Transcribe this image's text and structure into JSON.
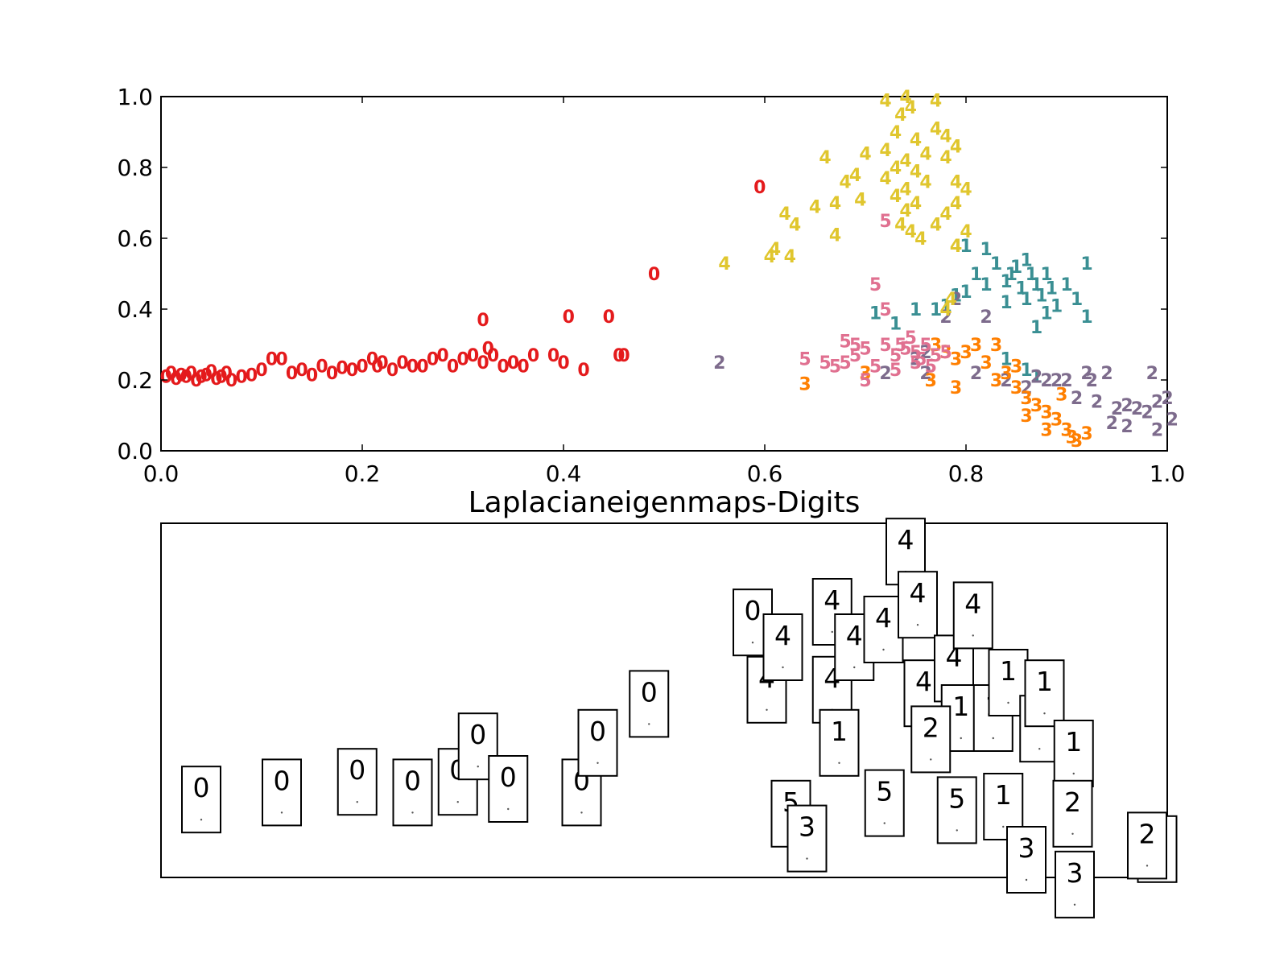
{
  "chart_data": [
    {
      "type": "scatter",
      "title": "",
      "xlabel": "",
      "ylabel": "",
      "xlim": [
        0.0,
        1.0
      ],
      "ylim": [
        0.0,
        1.0
      ],
      "xticks": [
        "0.0",
        "0.2",
        "0.4",
        "0.6",
        "0.8",
        "1.0"
      ],
      "yticks": [
        "0.0",
        "0.2",
        "0.4",
        "0.6",
        "0.8",
        "1.0"
      ],
      "grid": false,
      "colors": {
        "0": "#e41a1c",
        "1": "#3a8f93",
        "2": "#7d6b8c",
        "3": "#ff7f00",
        "4": "#e0c62e",
        "5": "#e07090"
      },
      "series": [
        {
          "label": "0",
          "points": [
            [
              0.005,
              0.21
            ],
            [
              0.01,
              0.22
            ],
            [
              0.015,
              0.205
            ],
            [
              0.02,
              0.215
            ],
            [
              0.025,
              0.21
            ],
            [
              0.03,
              0.22
            ],
            [
              0.035,
              0.2
            ],
            [
              0.04,
              0.21
            ],
            [
              0.045,
              0.215
            ],
            [
              0.05,
              0.225
            ],
            [
              0.055,
              0.205
            ],
            [
              0.06,
              0.21
            ],
            [
              0.065,
              0.22
            ],
            [
              0.07,
              0.2
            ],
            [
              0.08,
              0.21
            ],
            [
              0.09,
              0.215
            ],
            [
              0.1,
              0.23
            ],
            [
              0.11,
              0.26
            ],
            [
              0.12,
              0.26
            ],
            [
              0.13,
              0.22
            ],
            [
              0.14,
              0.23
            ],
            [
              0.15,
              0.215
            ],
            [
              0.16,
              0.24
            ],
            [
              0.17,
              0.22
            ],
            [
              0.18,
              0.235
            ],
            [
              0.19,
              0.23
            ],
            [
              0.2,
              0.24
            ],
            [
              0.21,
              0.26
            ],
            [
              0.215,
              0.24
            ],
            [
              0.22,
              0.25
            ],
            [
              0.23,
              0.23
            ],
            [
              0.24,
              0.25
            ],
            [
              0.25,
              0.24
            ],
            [
              0.26,
              0.24
            ],
            [
              0.27,
              0.26
            ],
            [
              0.28,
              0.27
            ],
            [
              0.29,
              0.24
            ],
            [
              0.3,
              0.26
            ],
            [
              0.31,
              0.27
            ],
            [
              0.32,
              0.25
            ],
            [
              0.325,
              0.29
            ],
            [
              0.33,
              0.27
            ],
            [
              0.34,
              0.24
            ],
            [
              0.35,
              0.25
            ],
            [
              0.36,
              0.24
            ],
            [
              0.37,
              0.27
            ],
            [
              0.39,
              0.27
            ],
            [
              0.4,
              0.25
            ],
            [
              0.42,
              0.23
            ],
            [
              0.455,
              0.27
            ],
            [
              0.46,
              0.27
            ],
            [
              0.405,
              0.38
            ],
            [
              0.445,
              0.38
            ],
            [
              0.32,
              0.37
            ],
            [
              0.49,
              0.5
            ],
            [
              0.595,
              0.745
            ]
          ]
        },
        {
          "label": "1",
          "points": [
            [
              0.77,
              0.4
            ],
            [
              0.71,
              0.39
            ],
            [
              0.73,
              0.36
            ],
            [
              0.75,
              0.4
            ],
            [
              0.78,
              0.41
            ],
            [
              0.79,
              0.44
            ],
            [
              0.8,
              0.45
            ],
            [
              0.81,
              0.5
            ],
            [
              0.82,
              0.47
            ],
            [
              0.83,
              0.53
            ],
            [
              0.84,
              0.48
            ],
            [
              0.845,
              0.5
            ],
            [
              0.85,
              0.52
            ],
            [
              0.855,
              0.46
            ],
            [
              0.86,
              0.43
            ],
            [
              0.865,
              0.5
            ],
            [
              0.87,
              0.47
            ],
            [
              0.875,
              0.44
            ],
            [
              0.88,
              0.5
            ],
            [
              0.885,
              0.46
            ],
            [
              0.89,
              0.41
            ],
            [
              0.9,
              0.47
            ],
            [
              0.91,
              0.43
            ],
            [
              0.92,
              0.38
            ],
            [
              0.92,
              0.53
            ],
            [
              0.87,
              0.35
            ],
            [
              0.84,
              0.42
            ],
            [
              0.8,
              0.58
            ],
            [
              0.82,
              0.57
            ],
            [
              0.86,
              0.54
            ],
            [
              0.88,
              0.39
            ],
            [
              0.84,
              0.26
            ],
            [
              0.87,
              0.21
            ],
            [
              0.86,
              0.23
            ]
          ]
        },
        {
          "label": "2",
          "points": [
            [
              0.555,
              0.25
            ],
            [
              0.72,
              0.22
            ],
            [
              0.76,
              0.22
            ],
            [
              0.78,
              0.38
            ],
            [
              0.79,
              0.43
            ],
            [
              0.81,
              0.22
            ],
            [
              0.82,
              0.38
            ],
            [
              0.84,
              0.2
            ],
            [
              0.86,
              0.18
            ],
            [
              0.87,
              0.21
            ],
            [
              0.88,
              0.2
            ],
            [
              0.89,
              0.2
            ],
            [
              0.9,
              0.2
            ],
            [
              0.91,
              0.15
            ],
            [
              0.92,
              0.22
            ],
            [
              0.93,
              0.14
            ],
            [
              0.94,
              0.22
            ],
            [
              0.95,
              0.12
            ],
            [
              0.96,
              0.13
            ],
            [
              0.97,
              0.12
            ],
            [
              0.98,
              0.11
            ],
            [
              0.985,
              0.22
            ],
            [
              0.99,
              0.14
            ],
            [
              1.0,
              0.15
            ],
            [
              1.005,
              0.09
            ],
            [
              0.99,
              0.06
            ],
            [
              0.96,
              0.07
            ],
            [
              0.945,
              0.08
            ],
            [
              0.925,
              0.2
            ],
            [
              0.75,
              0.26
            ],
            [
              0.76,
              0.28
            ]
          ]
        },
        {
          "label": "3",
          "points": [
            [
              0.64,
              0.19
            ],
            [
              0.7,
              0.22
            ],
            [
              0.77,
              0.3
            ],
            [
              0.78,
              0.28
            ],
            [
              0.79,
              0.26
            ],
            [
              0.8,
              0.28
            ],
            [
              0.81,
              0.3
            ],
            [
              0.82,
              0.25
            ],
            [
              0.83,
              0.3
            ],
            [
              0.84,
              0.22
            ],
            [
              0.85,
              0.18
            ],
            [
              0.86,
              0.15
            ],
            [
              0.87,
              0.13
            ],
            [
              0.88,
              0.11
            ],
            [
              0.89,
              0.09
            ],
            [
              0.9,
              0.06
            ],
            [
              0.905,
              0.04
            ],
            [
              0.91,
              0.03
            ],
            [
              0.92,
              0.05
            ],
            [
              0.895,
              0.16
            ],
            [
              0.83,
              0.2
            ],
            [
              0.79,
              0.18
            ],
            [
              0.765,
              0.2
            ],
            [
              0.85,
              0.24
            ],
            [
              0.86,
              0.1
            ],
            [
              0.88,
              0.06
            ]
          ]
        },
        {
          "label": "4",
          "points": [
            [
              0.74,
              1.0
            ],
            [
              0.745,
              0.97
            ],
            [
              0.735,
              0.95
            ],
            [
              0.73,
              0.9
            ],
            [
              0.75,
              0.88
            ],
            [
              0.72,
              0.85
            ],
            [
              0.76,
              0.84
            ],
            [
              0.74,
              0.82
            ],
            [
              0.73,
              0.8
            ],
            [
              0.75,
              0.79
            ],
            [
              0.72,
              0.77
            ],
            [
              0.76,
              0.76
            ],
            [
              0.74,
              0.74
            ],
            [
              0.73,
              0.72
            ],
            [
              0.75,
              0.7
            ],
            [
              0.74,
              0.68
            ],
            [
              0.735,
              0.64
            ],
            [
              0.745,
              0.62
            ],
            [
              0.755,
              0.6
            ],
            [
              0.77,
              0.64
            ],
            [
              0.78,
              0.67
            ],
            [
              0.79,
              0.7
            ],
            [
              0.8,
              0.74
            ],
            [
              0.79,
              0.76
            ],
            [
              0.78,
              0.83
            ],
            [
              0.79,
              0.86
            ],
            [
              0.78,
              0.89
            ],
            [
              0.77,
              0.91
            ],
            [
              0.7,
              0.84
            ],
            [
              0.69,
              0.78
            ],
            [
              0.68,
              0.76
            ],
            [
              0.66,
              0.83
            ],
            [
              0.695,
              0.71
            ],
            [
              0.67,
              0.7
            ],
            [
              0.65,
              0.69
            ],
            [
              0.62,
              0.67
            ],
            [
              0.63,
              0.64
            ],
            [
              0.61,
              0.57
            ],
            [
              0.625,
              0.55
            ],
            [
              0.56,
              0.53
            ],
            [
              0.605,
              0.55
            ],
            [
              0.67,
              0.61
            ],
            [
              0.72,
              0.99
            ],
            [
              0.77,
              0.99
            ],
            [
              0.79,
              0.58
            ],
            [
              0.8,
              0.62
            ],
            [
              0.79,
              0.58
            ],
            [
              0.78,
              0.4
            ],
            [
              0.785,
              0.43
            ]
          ]
        },
        {
          "label": "5",
          "points": [
            [
              0.64,
              0.26
            ],
            [
              0.66,
              0.25
            ],
            [
              0.67,
              0.24
            ],
            [
              0.68,
              0.25
            ],
            [
              0.69,
              0.27
            ],
            [
              0.7,
              0.29
            ],
            [
              0.71,
              0.24
            ],
            [
              0.72,
              0.3
            ],
            [
              0.73,
              0.27
            ],
            [
              0.74,
              0.29
            ],
            [
              0.75,
              0.28
            ],
            [
              0.755,
              0.26
            ],
            [
              0.76,
              0.3
            ],
            [
              0.77,
              0.27
            ],
            [
              0.78,
              0.28
            ],
            [
              0.745,
              0.32
            ],
            [
              0.735,
              0.3
            ],
            [
              0.7,
              0.2
            ],
            [
              0.71,
              0.47
            ],
            [
              0.72,
              0.4
            ],
            [
              0.75,
              0.25
            ],
            [
              0.765,
              0.24
            ],
            [
              0.73,
              0.23
            ],
            [
              0.69,
              0.3
            ],
            [
              0.68,
              0.31
            ],
            [
              0.72,
              0.65
            ]
          ]
        }
      ]
    },
    {
      "type": "scatter",
      "title": "Laplacianeigenmaps-Digits",
      "xlabel": "",
      "ylabel": "",
      "xlim": [
        0.0,
        1.0
      ],
      "ylim": [
        0.0,
        1.0
      ],
      "axis_ticks": false,
      "note_cards": [
        {
          "digit": "0",
          "x": 0.04,
          "y": 0.22
        },
        {
          "digit": "0",
          "x": 0.12,
          "y": 0.24
        },
        {
          "digit": "0",
          "x": 0.195,
          "y": 0.27
        },
        {
          "digit": "0",
          "x": 0.25,
          "y": 0.24
        },
        {
          "digit": "0",
          "x": 0.295,
          "y": 0.27
        },
        {
          "digit": "0",
          "x": 0.315,
          "y": 0.37
        },
        {
          "digit": "0",
          "x": 0.345,
          "y": 0.25
        },
        {
          "digit": "0",
          "x": 0.418,
          "y": 0.24
        },
        {
          "digit": "0",
          "x": 0.434,
          "y": 0.38
        },
        {
          "digit": "0",
          "x": 0.485,
          "y": 0.49
        },
        {
          "digit": "0",
          "x": 0.588,
          "y": 0.72
        },
        {
          "digit": "4",
          "x": 0.602,
          "y": 0.53
        },
        {
          "digit": "4",
          "x": 0.618,
          "y": 0.65
        },
        {
          "digit": "4",
          "x": 0.667,
          "y": 0.75
        },
        {
          "digit": "4",
          "x": 0.667,
          "y": 0.53
        },
        {
          "digit": "4",
          "x": 0.689,
          "y": 0.65
        },
        {
          "digit": "4",
          "x": 0.718,
          "y": 0.7
        },
        {
          "digit": "4",
          "x": 0.74,
          "y": 0.92
        },
        {
          "digit": "4",
          "x": 0.752,
          "y": 0.77
        },
        {
          "digit": "4",
          "x": 0.758,
          "y": 0.52
        },
        {
          "digit": "4",
          "x": 0.788,
          "y": 0.59
        },
        {
          "digit": "4",
          "x": 0.807,
          "y": 0.74
        },
        {
          "digit": "1",
          "x": 0.674,
          "y": 0.38
        },
        {
          "digit": "1",
          "x": 0.795,
          "y": 0.45
        },
        {
          "digit": "1",
          "x": 0.827,
          "y": 0.45
        },
        {
          "digit": "1",
          "x": 0.842,
          "y": 0.55
        },
        {
          "digit": "1",
          "x": 0.873,
          "y": 0.42
        },
        {
          "digit": "1",
          "x": 0.878,
          "y": 0.52
        },
        {
          "digit": "1",
          "x": 0.907,
          "y": 0.35
        },
        {
          "digit": "1",
          "x": 0.837,
          "y": 0.2
        },
        {
          "digit": "2",
          "x": 0.765,
          "y": 0.39
        },
        {
          "digit": "2",
          "x": 0.906,
          "y": 0.18
        },
        {
          "digit": "2",
          "x": 0.99,
          "y": 0.08
        },
        {
          "digit": "2",
          "x": 0.98,
          "y": 0.09
        },
        {
          "digit": "5",
          "x": 0.626,
          "y": 0.18
        },
        {
          "digit": "5",
          "x": 0.719,
          "y": 0.21
        },
        {
          "digit": "5",
          "x": 0.791,
          "y": 0.19
        },
        {
          "digit": "3",
          "x": 0.642,
          "y": 0.11
        },
        {
          "digit": "3",
          "x": 0.86,
          "y": 0.05
        },
        {
          "digit": "3",
          "x": 0.908,
          "y": -0.02
        }
      ]
    }
  ]
}
